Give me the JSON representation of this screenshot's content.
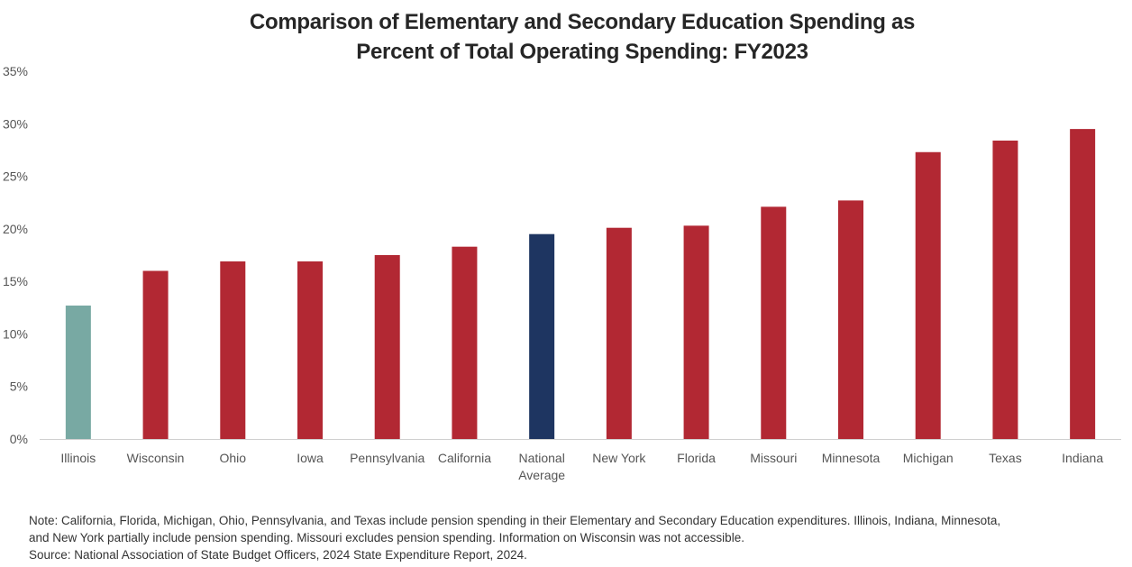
{
  "chart_data": {
    "type": "bar",
    "title_lines": [
      "Comparison of Elementary and Secondary Education Spending as",
      "Percent of Total Operating Spending: FY2023"
    ],
    "categories": [
      [
        "Illinois"
      ],
      [
        "Wisconsin"
      ],
      [
        "Ohio"
      ],
      [
        "Iowa"
      ],
      [
        "Pennsylvania"
      ],
      [
        "California"
      ],
      [
        "National",
        "Average"
      ],
      [
        "New York"
      ],
      [
        "Florida"
      ],
      [
        "Missouri"
      ],
      [
        "Minnesota"
      ],
      [
        "Michigan"
      ],
      [
        "Texas"
      ],
      [
        "Indiana"
      ]
    ],
    "values": [
      12.7,
      16.0,
      16.9,
      16.9,
      17.5,
      18.3,
      19.5,
      20.1,
      20.3,
      22.1,
      22.7,
      27.3,
      28.4,
      29.5
    ],
    "bar_colors": [
      "#78a9a3",
      "#b22833",
      "#b22833",
      "#b22833",
      "#b22833",
      "#b22833",
      "#1e3561",
      "#b22833",
      "#b22833",
      "#b22833",
      "#b22833",
      "#b22833",
      "#b22833",
      "#b22833"
    ],
    "ylim": [
      0,
      35
    ],
    "yticks": [
      0,
      5,
      10,
      15,
      20,
      25,
      30,
      35
    ],
    "ytick_labels": [
      "0%",
      "5%",
      "10%",
      "15%",
      "20%",
      "25%",
      "30%",
      "35%"
    ],
    "xlabel": "",
    "ylabel": "",
    "grid": false,
    "legend": "none"
  },
  "notes": {
    "note_line1": "Note: California, Florida, Michigan, Ohio, Pennsylvania, and Texas include pension spending in their Elementary and Secondary Education expenditures. Illinois, Indiana, Minnesota,",
    "note_line2": "and New York partially include pension spending. Missouri excludes pension spending. Information on Wisconsin was not accessible.",
    "source": "Source: National Association of State Budget Officers, 2024 State Expenditure Report, 2024."
  },
  "colors": {
    "highlight": "#78a9a3",
    "national": "#1e3561",
    "states": "#b22833",
    "axis": "#d0d0d0"
  }
}
